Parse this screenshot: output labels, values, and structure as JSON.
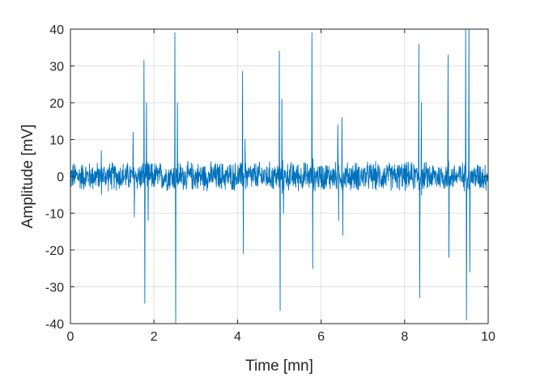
{
  "chart_data": {
    "type": "line",
    "xlabel": "Time [mn]",
    "ylabel": "Amplitude [mV]",
    "xlim": [
      0,
      10
    ],
    "ylim": [
      -40,
      40
    ],
    "x_ticks": [
      "0",
      "2",
      "4",
      "6",
      "8",
      "10"
    ],
    "y_ticks": [
      "-40",
      "-30",
      "-20",
      "-10",
      "0",
      "10",
      "20",
      "30",
      "40"
    ],
    "grid": true,
    "line_color": "#0072BD",
    "baseline_noise_amplitude_mV": 4,
    "series": [
      {
        "spikes": [
          {
            "x": 0.74,
            "y": 7
          },
          {
            "x": 1.5,
            "y": 12
          },
          {
            "x": 1.53,
            "y": -11
          },
          {
            "x": 1.76,
            "y": 31.5
          },
          {
            "x": 1.78,
            "y": -34.5
          },
          {
            "x": 1.82,
            "y": 20
          },
          {
            "x": 1.86,
            "y": -12
          },
          {
            "x": 2.5,
            "y": 39
          },
          {
            "x": 2.52,
            "y": -40
          },
          {
            "x": 2.56,
            "y": 20
          },
          {
            "x": 4.12,
            "y": 28.5
          },
          {
            "x": 4.14,
            "y": -21
          },
          {
            "x": 4.18,
            "y": 10
          },
          {
            "x": 5.0,
            "y": 34
          },
          {
            "x": 5.02,
            "y": -36.5
          },
          {
            "x": 5.06,
            "y": 21
          },
          {
            "x": 5.1,
            "y": -10
          },
          {
            "x": 5.78,
            "y": 39
          },
          {
            "x": 5.8,
            "y": -25
          },
          {
            "x": 6.4,
            "y": 14
          },
          {
            "x": 6.42,
            "y": -12
          },
          {
            "x": 6.5,
            "y": 16
          },
          {
            "x": 6.52,
            "y": -16
          },
          {
            "x": 8.34,
            "y": 36
          },
          {
            "x": 8.36,
            "y": -33
          },
          {
            "x": 8.4,
            "y": 20
          },
          {
            "x": 9.04,
            "y": 33
          },
          {
            "x": 9.06,
            "y": -22
          },
          {
            "x": 9.46,
            "y": 40
          },
          {
            "x": 9.48,
            "y": -39
          },
          {
            "x": 9.54,
            "y": 40
          },
          {
            "x": 9.56,
            "y": -26
          }
        ]
      }
    ]
  }
}
